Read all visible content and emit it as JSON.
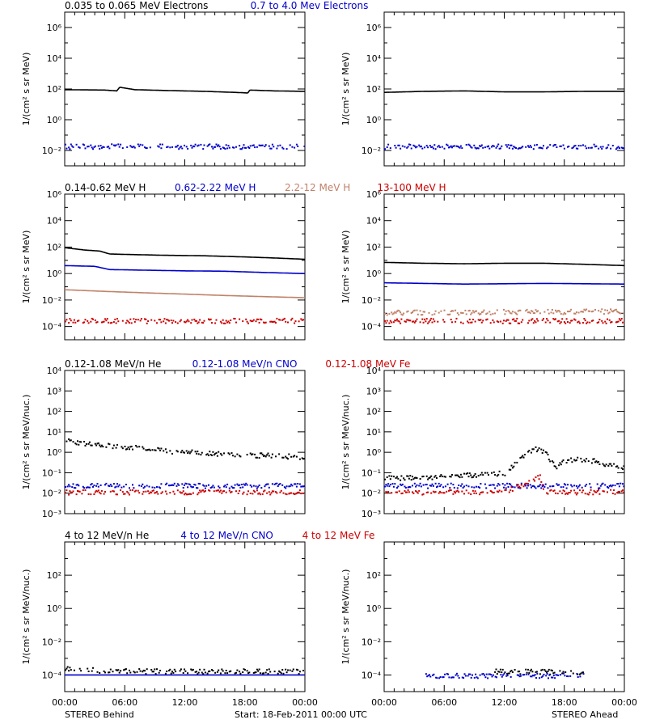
{
  "footer": {
    "left_label": "STEREO Behind",
    "center_label": "Start: 18-Feb-2011 00:00 UTC",
    "right_label": "STEREO Ahead"
  },
  "chart_data": [
    {
      "type": "scatter",
      "name": "electrons-behind",
      "panel_row": 1,
      "spacecraft": "STEREO Behind",
      "legend": [
        {
          "label": "0.035 to 0.065 MeV Electrons",
          "color": "#000000"
        },
        {
          "label": "0.7 to 4.0 Mev Electrons",
          "color": "#0000cc"
        }
      ],
      "ylabel": "1/(cm² s sr MeV)",
      "yscale": "log",
      "ylim": [
        0.001,
        10000000
      ],
      "ytick_exponents": [
        -2,
        0,
        2,
        4,
        6
      ],
      "x_hours_range": [
        0,
        24
      ],
      "x_ticks": [
        "00:00",
        "06:00",
        "12:00",
        "18:00",
        "00:00"
      ],
      "series": [
        {
          "color": "#000000",
          "style": "line",
          "x": [
            0,
            4,
            5.2,
            5.5,
            7,
            10,
            14,
            17,
            18.3,
            18.5,
            21,
            24
          ],
          "y": [
            90,
            85,
            75,
            130,
            90,
            80,
            70,
            60,
            55,
            85,
            75,
            70
          ]
        },
        {
          "color": "#0000cc",
          "style": "dots",
          "x": [
            0,
            4,
            8,
            12,
            16,
            20,
            24
          ],
          "y": [
            0.02,
            0.02,
            0.02,
            0.02,
            0.02,
            0.02,
            0.02
          ]
        }
      ]
    },
    {
      "type": "scatter",
      "name": "electrons-ahead",
      "panel_row": 1,
      "spacecraft": "STEREO Ahead",
      "legend": [],
      "ylabel": "1/(cm² s sr MeV)",
      "yscale": "log",
      "ylim": [
        0.001,
        10000000
      ],
      "ytick_exponents": [
        -2,
        0,
        2,
        4,
        6
      ],
      "x_hours_range": [
        0,
        24
      ],
      "x_ticks": [
        "00:00",
        "06:00",
        "12:00",
        "18:00",
        "00:00"
      ],
      "series": [
        {
          "color": "#000000",
          "style": "line",
          "x": [
            0,
            4,
            8,
            12,
            16,
            20,
            24
          ],
          "y": [
            60,
            70,
            75,
            65,
            65,
            70,
            70
          ]
        },
        {
          "color": "#0000cc",
          "style": "dots",
          "x": [
            0,
            4,
            8,
            12,
            16,
            20,
            24
          ],
          "y": [
            0.02,
            0.02,
            0.02,
            0.02,
            0.02,
            0.02,
            0.02
          ]
        }
      ]
    },
    {
      "type": "scatter",
      "name": "protons-behind",
      "panel_row": 2,
      "spacecraft": "STEREO Behind",
      "legend": [
        {
          "label": "0.14-0.62 MeV H",
          "color": "#000000"
        },
        {
          "label": "0.62-2.22 MeV H",
          "color": "#0000cc"
        },
        {
          "label": "2.2-12 MeV H",
          "color": "#c0826a"
        },
        {
          "label": "13-100 MeV H",
          "color": "#cc0000"
        }
      ],
      "ylabel": "1/(cm² s sr MeV)",
      "yscale": "log",
      "ylim": [
        1e-05,
        1000000
      ],
      "ytick_exponents": [
        -4,
        -2,
        0,
        2,
        4,
        6
      ],
      "x_hours_range": [
        0,
        24
      ],
      "x_ticks": [
        "00:00",
        "06:00",
        "12:00",
        "18:00",
        "00:00"
      ],
      "series": [
        {
          "color": "#000000",
          "style": "line",
          "x": [
            0,
            2,
            3.5,
            4.5,
            6,
            10,
            14,
            18,
            21,
            24
          ],
          "y": [
            90,
            60,
            50,
            30,
            28,
            24,
            22,
            18,
            15,
            12
          ]
        },
        {
          "color": "#0000cc",
          "style": "line",
          "x": [
            0,
            3,
            4.5,
            8,
            12,
            16,
            20,
            24
          ],
          "y": [
            4,
            3.5,
            2,
            1.8,
            1.6,
            1.5,
            1.2,
            1.0
          ]
        },
        {
          "color": "#c0826a",
          "style": "line",
          "x": [
            0,
            4,
            8,
            12,
            16,
            20,
            24
          ],
          "y": [
            0.06,
            0.045,
            0.035,
            0.028,
            0.022,
            0.018,
            0.015
          ]
        },
        {
          "color": "#cc0000",
          "style": "dots",
          "x": [
            0,
            4,
            8,
            12,
            16,
            20,
            24
          ],
          "y": [
            0.0003,
            0.0003,
            0.0003,
            0.0003,
            0.0003,
            0.0003,
            0.0003
          ]
        }
      ]
    },
    {
      "type": "scatter",
      "name": "protons-ahead",
      "panel_row": 2,
      "spacecraft": "STEREO Ahead",
      "legend": [],
      "ylabel": "1/(cm² s sr MeV)",
      "yscale": "log",
      "ylim": [
        1e-05,
        1000000
      ],
      "ytick_exponents": [
        -4,
        -2,
        0,
        2,
        4,
        6
      ],
      "x_hours_range": [
        0,
        24
      ],
      "x_ticks": [
        "00:00",
        "06:00",
        "12:00",
        "18:00",
        "00:00"
      ],
      "series": [
        {
          "color": "#000000",
          "style": "line",
          "x": [
            0,
            4,
            8,
            12,
            16,
            20,
            24
          ],
          "y": [
            7,
            6,
            5.5,
            6,
            6,
            5,
            4
          ]
        },
        {
          "color": "#0000cc",
          "style": "line",
          "x": [
            0,
            4,
            8,
            12,
            16,
            20,
            24
          ],
          "y": [
            0.2,
            0.18,
            0.16,
            0.17,
            0.18,
            0.17,
            0.16
          ]
        },
        {
          "color": "#c0826a",
          "style": "dots",
          "x": [
            0,
            4,
            8,
            12,
            16,
            20,
            24
          ],
          "y": [
            0.0012,
            0.0013,
            0.0013,
            0.0014,
            0.0014,
            0.0015,
            0.0016
          ]
        },
        {
          "color": "#cc0000",
          "style": "dots",
          "x": [
            0,
            4,
            8,
            12,
            16,
            20,
            24
          ],
          "y": [
            0.0003,
            0.0003,
            0.0003,
            0.0003,
            0.0003,
            0.0003,
            0.0003
          ]
        }
      ]
    },
    {
      "type": "scatter",
      "name": "heavy-ions-low-behind",
      "panel_row": 3,
      "spacecraft": "STEREO Behind",
      "legend": [
        {
          "label": "0.12-1.08 MeV/n He",
          "color": "#000000"
        },
        {
          "label": "0.12-1.08 MeV/n CNO",
          "color": "#0000cc"
        },
        {
          "label": "0.12-1.08 MeV Fe",
          "color": "#cc0000"
        }
      ],
      "ylabel": "1/(cm² s sr MeV/nuc.)",
      "yscale": "log",
      "ylim": [
        0.001,
        10000
      ],
      "ytick_exponents": [
        -3,
        -2,
        -1,
        0,
        1,
        2,
        3,
        4
      ],
      "x_hours_range": [
        0,
        24
      ],
      "x_ticks": [
        "00:00",
        "06:00",
        "12:00",
        "18:00",
        "00:00"
      ],
      "series": [
        {
          "color": "#000000",
          "style": "dots",
          "x": [
            0,
            2,
            3.5,
            5,
            8,
            10,
            14,
            18,
            22,
            24
          ],
          "y": [
            4,
            3,
            2.5,
            2,
            1.8,
            1.2,
            1.0,
            0.8,
            0.7,
            0.6
          ]
        },
        {
          "color": "#0000cc",
          "style": "dots",
          "x": [
            0,
            4,
            8,
            12,
            16,
            20,
            24
          ],
          "y": [
            0.025,
            0.025,
            0.025,
            0.025,
            0.025,
            0.025,
            0.025
          ]
        },
        {
          "color": "#cc0000",
          "style": "dots",
          "x": [
            0,
            4,
            8,
            12,
            16,
            20,
            24
          ],
          "y": [
            0.012,
            0.012,
            0.012,
            0.012,
            0.012,
            0.012,
            0.012
          ]
        }
      ]
    },
    {
      "type": "scatter",
      "name": "heavy-ions-low-ahead",
      "panel_row": 3,
      "spacecraft": "STEREO Ahead",
      "legend": [],
      "ylabel": "1/(cm² s sr MeV/nuc.)",
      "yscale": "log",
      "ylim": [
        0.001,
        10000
      ],
      "ytick_exponents": [
        -3,
        -2,
        -1,
        0,
        1,
        2,
        3,
        4
      ],
      "x_hours_range": [
        0,
        24
      ],
      "x_ticks": [
        "00:00",
        "06:00",
        "12:00",
        "18:00",
        "00:00"
      ],
      "series": [
        {
          "color": "#000000",
          "style": "dots",
          "x": [
            0,
            4,
            8,
            12,
            14,
            15,
            16,
            17,
            18,
            20,
            22,
            24
          ],
          "y": [
            0.06,
            0.06,
            0.08,
            0.1,
            0.8,
            1.5,
            1.2,
            0.2,
            0.4,
            0.5,
            0.3,
            0.2
          ]
        },
        {
          "color": "#0000cc",
          "style": "dots",
          "x": [
            0,
            4,
            8,
            12,
            16,
            20,
            24
          ],
          "y": [
            0.025,
            0.025,
            0.025,
            0.025,
            0.025,
            0.025,
            0.025
          ]
        },
        {
          "color": "#cc0000",
          "style": "dots",
          "x": [
            0,
            4,
            8,
            12,
            15.5,
            16,
            20,
            24
          ],
          "y": [
            0.012,
            0.012,
            0.012,
            0.012,
            0.07,
            0.012,
            0.012,
            0.012
          ]
        }
      ]
    },
    {
      "type": "scatter",
      "name": "heavy-ions-high-behind",
      "panel_row": 4,
      "spacecraft": "STEREO Behind",
      "legend": [
        {
          "label": "4 to 12 MeV/n He",
          "color": "#000000"
        },
        {
          "label": "4 to 12 MeV/n CNO",
          "color": "#0000cc"
        },
        {
          "label": "4 to 12 MeV Fe",
          "color": "#cc0000"
        }
      ],
      "ylabel": "1/(cm² s sr MeV/nuc.)",
      "yscale": "log",
      "ylim": [
        1e-05,
        10000
      ],
      "ytick_exponents": [
        -4,
        -2,
        0,
        2
      ],
      "x_hours_range": [
        0,
        24
      ],
      "x_ticks": [
        "00:00",
        "06:00",
        "12:00",
        "18:00",
        "00:00"
      ],
      "series": [
        {
          "color": "#000000",
          "style": "dots",
          "x": [
            0,
            4,
            8,
            12,
            16,
            20,
            24
          ],
          "y": [
            0.00025,
            0.0002,
            0.00018,
            0.00018,
            0.00018,
            0.00018,
            0.00018
          ]
        },
        {
          "color": "#0000cc",
          "style": "line",
          "x": [
            0,
            24
          ],
          "y": [
            0.0001,
            0.0001
          ]
        }
      ]
    },
    {
      "type": "scatter",
      "name": "heavy-ions-high-ahead",
      "panel_row": 4,
      "spacecraft": "STEREO Ahead",
      "legend": [],
      "ylabel": "1/(cm² s sr MeV/nuc.)",
      "yscale": "log",
      "ylim": [
        1e-05,
        10000
      ],
      "ytick_exponents": [
        -4,
        -2,
        0,
        2
      ],
      "x_hours_range": [
        0,
        24
      ],
      "x_ticks": [
        "00:00",
        "06:00",
        "12:00",
        "18:00",
        "00:00"
      ],
      "series": [
        {
          "color": "#000000",
          "style": "dots",
          "x": [
            11,
            20
          ],
          "y": [
            0.00018,
            0.00016
          ]
        },
        {
          "color": "#0000cc",
          "style": "dots",
          "x": [
            4,
            8,
            12,
            16,
            20
          ],
          "y": [
            0.0001,
            0.0001,
            0.0001,
            0.0001,
            0.0001
          ]
        }
      ]
    }
  ]
}
